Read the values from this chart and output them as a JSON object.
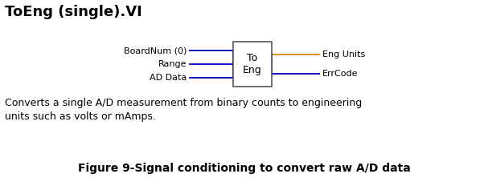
{
  "title": "ToEng (single).VI",
  "title_fontsize": 13,
  "bg_color": "#ffffff",
  "text_color": "#000000",
  "blue": "#0000bb",
  "orange": "#cc8800",
  "box_edge_color": "#555555",
  "box_label_line1": "To",
  "box_label_line2": "Eng",
  "description_line1": "Converts a single A/D measurement from binary counts to engineering",
  "description_line2": "units such as volts or mAmps.",
  "desc_fontsize": 9,
  "caption": "Figure 9-Signal conditioning to convert raw A/D data",
  "caption_fontsize": 10,
  "inputs": [
    {
      "label": "BoardNum (0)",
      "color": "#0000bb"
    },
    {
      "label": "Range",
      "color": "#0000bb"
    },
    {
      "label": "AD Data",
      "color": "#0000bb"
    }
  ],
  "outputs": [
    {
      "label": "Eng Units",
      "color": "#cc8800"
    },
    {
      "label": "ErrCode",
      "color": "#0000bb"
    }
  ]
}
